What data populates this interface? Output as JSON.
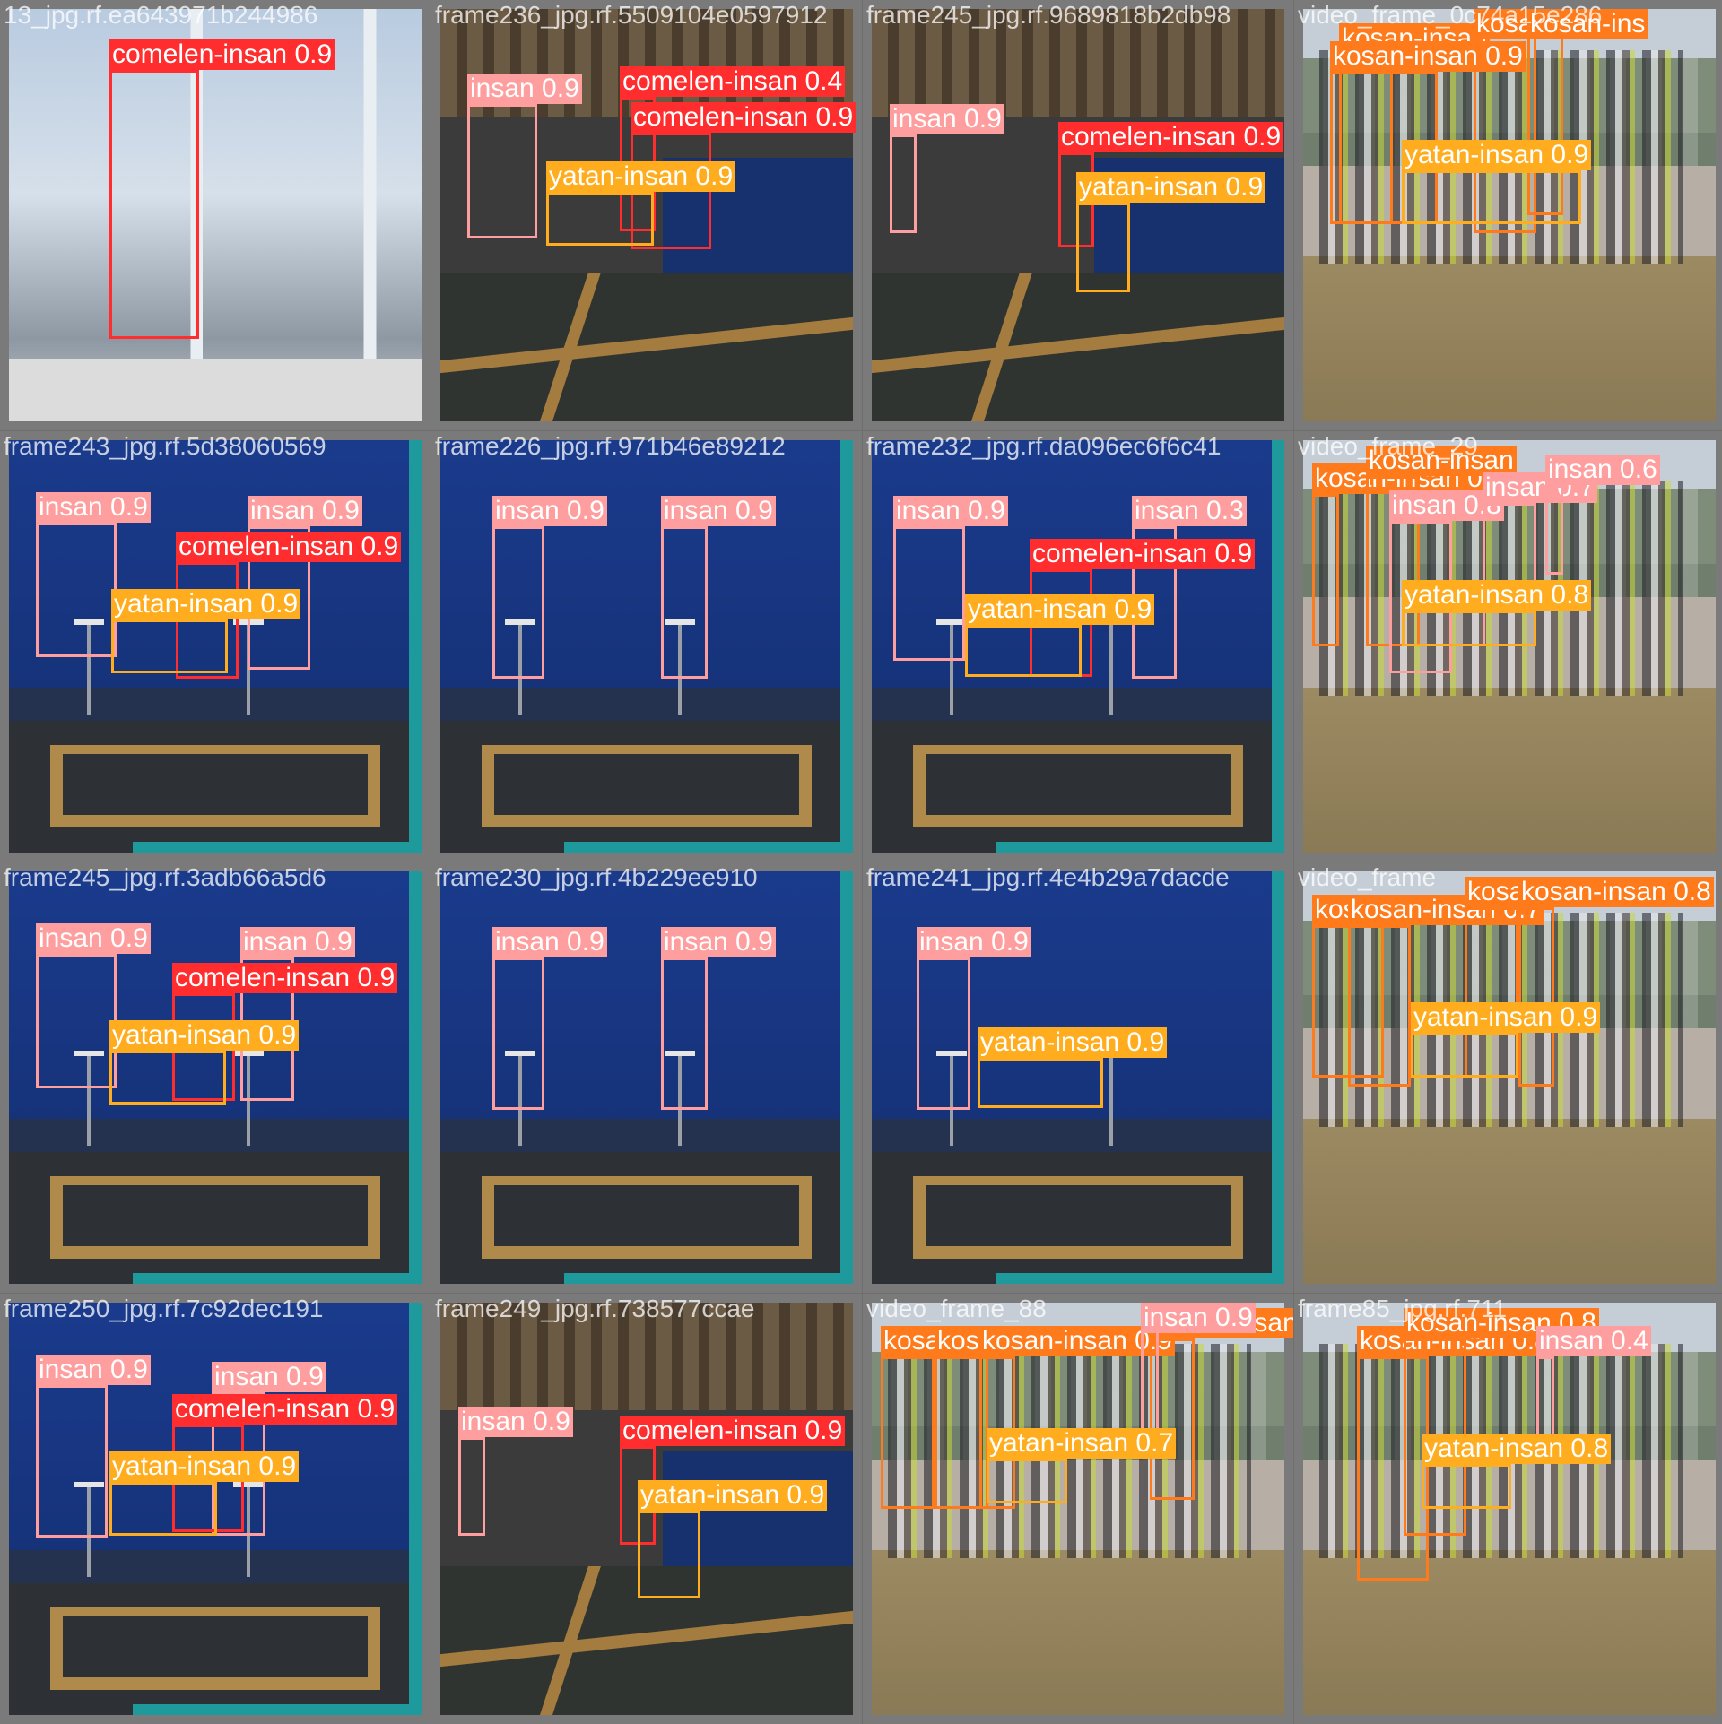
{
  "classes": {
    "comelen-insan": "#ff2d2d",
    "insan": "#ff9e9e",
    "yatan-insan": "#ffad1f",
    "kosan-insan": "#ff7a1a"
  },
  "tiles": [
    {
      "caption": "13_jpg.rf.ea643971b244986",
      "scene": "gym",
      "detections": [
        {
          "cls": "comelen-insan",
          "conf": "0.9"
        }
      ]
    },
    {
      "caption": "frame236_jpg.rf.5509104e0597912",
      "scene": "room",
      "detections": [
        {
          "cls": "insan",
          "conf": "0.9"
        },
        {
          "cls": "comelen-insan",
          "conf": "0.4"
        },
        {
          "cls": "comelen-insan",
          "conf": "0.9"
        },
        {
          "cls": "yatan-insan",
          "conf": "0.9"
        }
      ]
    },
    {
      "caption": "frame245_jpg.rf.9689818b2db98",
      "scene": "room",
      "detections": [
        {
          "cls": "insan",
          "conf": "0.9"
        },
        {
          "cls": "comelen-insan",
          "conf": "0.9"
        },
        {
          "cls": "yatan-insan",
          "conf": "0.9"
        }
      ]
    },
    {
      "caption": "video_frame_0c74a15e286",
      "scene": "park",
      "detections": [
        {
          "cls": "kosan-insan",
          "conf": ""
        },
        {
          "cls": "kosan-insan",
          "conf": ""
        },
        {
          "cls": "kosan-insan",
          "conf": "0.9"
        },
        {
          "cls": "kosan-ins",
          "conf": ""
        },
        {
          "cls": "yatan-insan",
          "conf": "0.9"
        }
      ]
    },
    {
      "caption": "frame243_jpg.rf.5d38060569",
      "scene": "press",
      "detections": [
        {
          "cls": "insan",
          "conf": "0.9"
        },
        {
          "cls": "insan",
          "conf": "0.9"
        },
        {
          "cls": "comelen-insan",
          "conf": "0.9"
        },
        {
          "cls": "yatan-insan",
          "conf": "0.9"
        }
      ]
    },
    {
      "caption": "frame226_jpg.rf.971b46e89212",
      "scene": "press",
      "detections": [
        {
          "cls": "insan",
          "conf": "0.9"
        },
        {
          "cls": "insan",
          "conf": "0.9"
        }
      ]
    },
    {
      "caption": "frame232_jpg.rf.da096ec6f6c41",
      "scene": "press",
      "detections": [
        {
          "cls": "insan",
          "conf": "0.9"
        },
        {
          "cls": "insan",
          "conf": "0.3"
        },
        {
          "cls": "comelen-insan",
          "conf": "0.9"
        },
        {
          "cls": "yatan-insan",
          "conf": "0.9"
        }
      ]
    },
    {
      "caption": "video_frame_29",
      "scene": "park",
      "detections": [
        {
          "cls": "kosan-insan",
          "conf": "0"
        },
        {
          "cls": "kosan-insan",
          "conf": ""
        },
        {
          "cls": "insan",
          "conf": "0.8"
        },
        {
          "cls": "insan",
          "conf": "0.7"
        },
        {
          "cls": "insan",
          "conf": "0.6"
        },
        {
          "cls": "yatan-insan",
          "conf": "0.8"
        }
      ]
    },
    {
      "caption": "frame245_jpg.rf.3adb66a5d6",
      "scene": "press",
      "detections": [
        {
          "cls": "insan",
          "conf": "0.9"
        },
        {
          "cls": "insan",
          "conf": "0.9"
        },
        {
          "cls": "comelen-insan",
          "conf": "0.9"
        },
        {
          "cls": "yatan-insan",
          "conf": "0.9"
        }
      ]
    },
    {
      "caption": "frame230_jpg.rf.4b229ee910",
      "scene": "press",
      "detections": [
        {
          "cls": "insan",
          "conf": "0.9"
        },
        {
          "cls": "insan",
          "conf": "0.9"
        }
      ]
    },
    {
      "caption": "frame241_jpg.rf.4e4b29a7dacde",
      "scene": "press",
      "detections": [
        {
          "cls": "insan",
          "conf": "0.9"
        },
        {
          "cls": "yatan-insan",
          "conf": "0.9"
        }
      ]
    },
    {
      "caption": "video_frame",
      "scene": "park",
      "detections": [
        {
          "cls": "kosan-ins",
          "conf": ""
        },
        {
          "cls": "kosan-insan",
          "conf": "0.7"
        },
        {
          "cls": "kosan-insan",
          "conf": "0.8"
        },
        {
          "cls": "kosan-insan",
          "conf": "0.8"
        },
        {
          "cls": "yatan-insan",
          "conf": "0.9"
        }
      ]
    },
    {
      "caption": "frame250_jpg.rf.7c92dec191",
      "scene": "press",
      "detections": [
        {
          "cls": "insan",
          "conf": "0.9"
        },
        {
          "cls": "insan",
          "conf": "0.9"
        },
        {
          "cls": "comelen-insan",
          "conf": "0.9"
        },
        {
          "cls": "yatan-insan",
          "conf": "0.9"
        }
      ]
    },
    {
      "caption": "frame249_jpg.rf.738577ccae",
      "scene": "room",
      "detections": [
        {
          "cls": "insan",
          "conf": "0.9"
        },
        {
          "cls": "comelen-insan",
          "conf": "0.9"
        },
        {
          "cls": "yatan-insan",
          "conf": "0.9"
        }
      ]
    },
    {
      "caption": "video_frame_88",
      "scene": "park",
      "detections": [
        {
          "cls": "kosan-insan",
          "conf": "0.8"
        },
        {
          "cls": "kosan-insan",
          "conf": "0.9"
        },
        {
          "cls": "kosan-insan",
          "conf": "0.9"
        },
        {
          "cls": "kosan-insan",
          "conf": "0.9"
        },
        {
          "cls": "insan",
          "conf": "0.9"
        },
        {
          "cls": "yatan-insan",
          "conf": "0.7"
        }
      ]
    },
    {
      "caption": "frame85_jpg.rf.711",
      "scene": "park",
      "detections": [
        {
          "cls": "kosan-insan",
          "conf": "0.8"
        },
        {
          "cls": "kosan-insan",
          "conf": "0.8"
        },
        {
          "cls": "insan",
          "conf": "0.4"
        },
        {
          "cls": "yatan-insan",
          "conf": "0.8"
        }
      ]
    }
  ]
}
